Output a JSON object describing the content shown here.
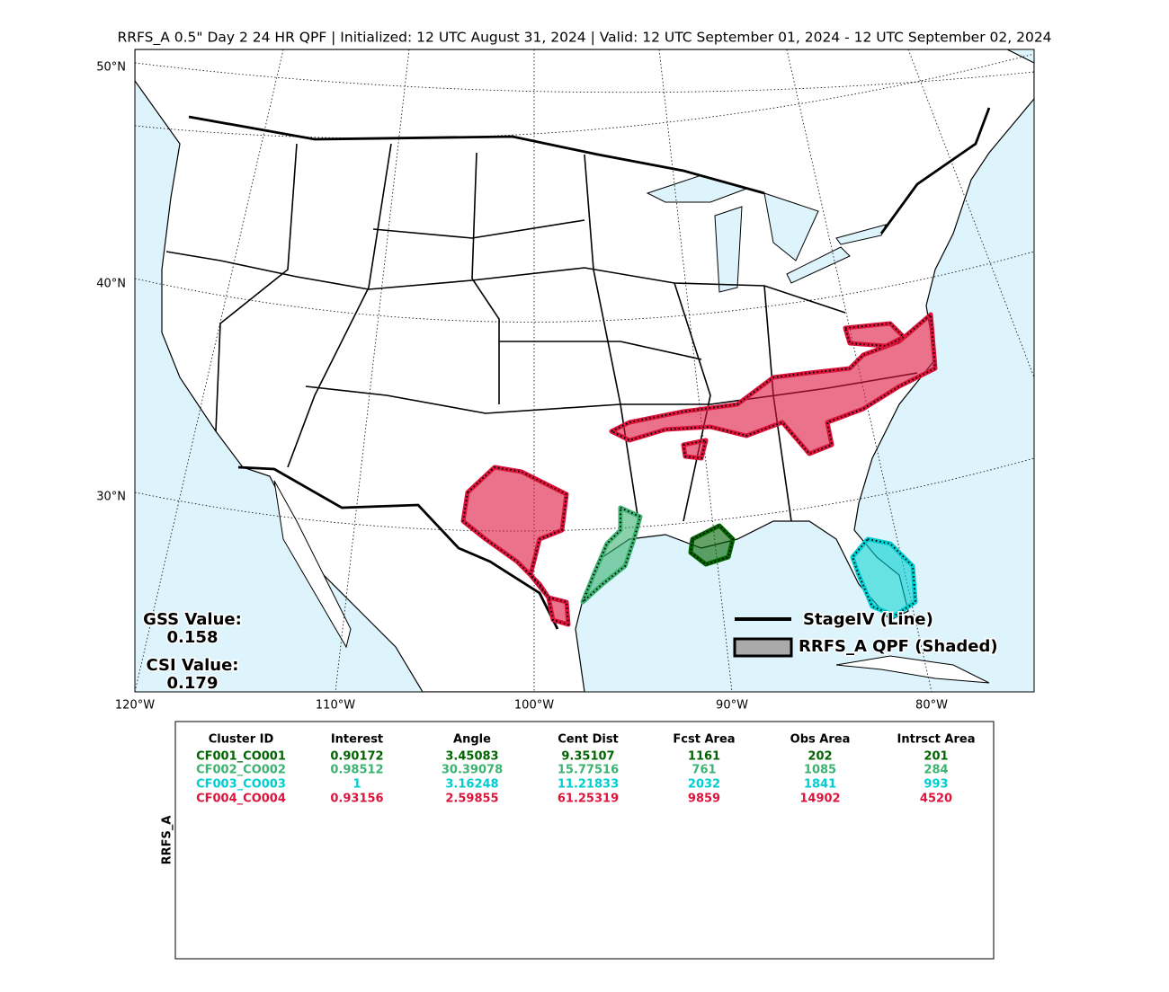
{
  "title": "RRFS_A 0.5\" Day 2 24 HR QPF | Initialized: 12 UTC August 31, 2024 | Valid: 12 UTC September 01, 2024 - 12 UTC September 02, 2024",
  "map": {
    "lat_labels": [
      "50°N",
      "40°N",
      "30°N"
    ],
    "lon_labels": [
      "120°W",
      "110°W",
      "100°W",
      "90°W",
      "80°W"
    ],
    "gss": {
      "label": "GSS Value:",
      "value": "0.158"
    },
    "csi": {
      "label": "CSI Value:",
      "value": "0.179"
    },
    "legend": [
      {
        "label": "StageIV (Line)",
        "color": "#000000"
      },
      {
        "label": "RRFS_A QPF (Shaded)",
        "color": "#aaaaaa"
      }
    ]
  },
  "table": {
    "ylabel": "RRFS_A",
    "columns": [
      "Cluster ID",
      "Interest",
      "Angle",
      "Cent Dist",
      "Fcst Area",
      "Obs Area",
      "Intrsct Area"
    ],
    "rows": [
      {
        "color": "#006400",
        "cells": [
          "CF001_CO001",
          "0.90172",
          "3.45083",
          "9.35107",
          "1161",
          "202",
          "201"
        ]
      },
      {
        "color": "#3cb371",
        "cells": [
          "CF002_CO002",
          "0.98512",
          "30.39078",
          "15.77516",
          "761",
          "1085",
          "284"
        ]
      },
      {
        "color": "#00ced1",
        "cells": [
          "CF003_CO003",
          "1",
          "3.16248",
          "11.21833",
          "2032",
          "1841",
          "993"
        ]
      },
      {
        "color": "#dc143c",
        "cells": [
          "CF004_CO004",
          "0.93156",
          "2.59855",
          "61.25319",
          "9859",
          "14902",
          "4520"
        ]
      }
    ]
  }
}
